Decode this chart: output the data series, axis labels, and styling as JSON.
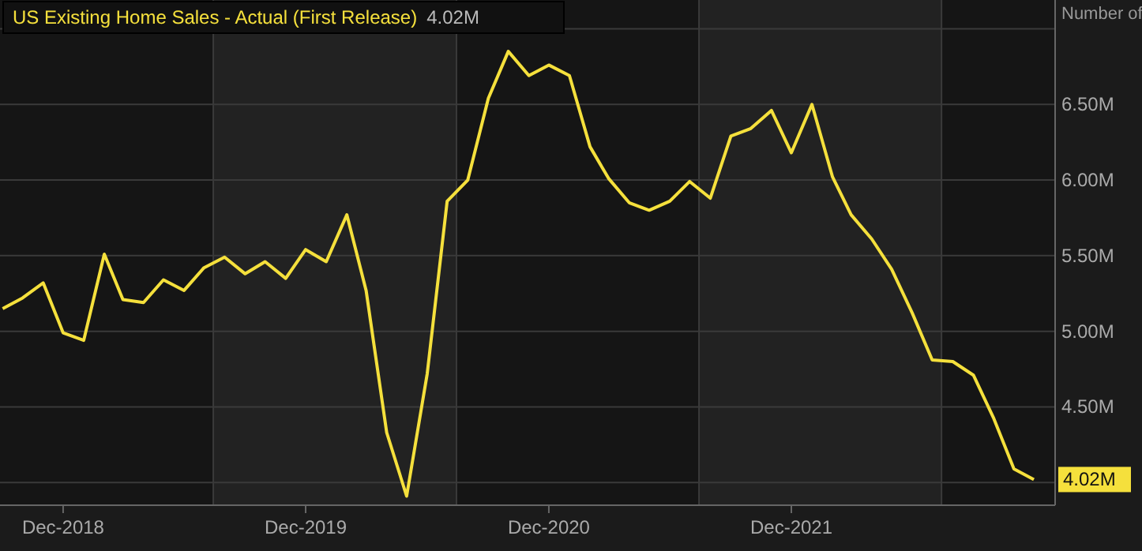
{
  "chart_data": {
    "type": "line",
    "ylabel": "Number of",
    "legend": "top left",
    "grid": true,
    "line_style": "solid",
    "x": [
      "2018-09",
      "2018-10",
      "2018-11",
      "2018-12",
      "2019-01",
      "2019-02",
      "2019-03",
      "2019-04",
      "2019-05",
      "2019-06",
      "2019-07",
      "2019-08",
      "2019-09",
      "2019-10",
      "2019-11",
      "2019-12",
      "2020-01",
      "2020-02",
      "2020-03",
      "2020-04",
      "2020-05",
      "2020-06",
      "2020-07",
      "2020-08",
      "2020-09",
      "2020-10",
      "2020-11",
      "2020-12",
      "2021-01",
      "2021-02",
      "2021-03",
      "2021-04",
      "2021-05",
      "2021-06",
      "2021-07",
      "2021-08",
      "2021-09",
      "2021-10",
      "2021-11",
      "2021-12",
      "2022-01",
      "2022-02",
      "2022-03",
      "2022-04",
      "2022-05",
      "2022-06",
      "2022-07",
      "2022-08",
      "2022-09",
      "2022-10",
      "2022-11",
      "2022-12"
    ],
    "xlim": [
      "2018-08-28",
      "2023-01-02"
    ],
    "xticks": [
      {
        "value": "2018-12-01",
        "label": "Dec-2018"
      },
      {
        "value": "2019-07-15",
        "label": null
      },
      {
        "value": "2019-12-01",
        "label": "Dec-2019"
      },
      {
        "value": "2020-07-15",
        "label": null
      },
      {
        "value": "2020-12-01",
        "label": "Dec-2020"
      },
      {
        "value": "2021-07-15",
        "label": null
      },
      {
        "value": "2021-12-01",
        "label": "Dec-2021"
      },
      {
        "value": "2022-07-15",
        "label": null
      }
    ],
    "ylim": [
      3.85,
      7.19
    ],
    "yticks": [
      {
        "value": 4,
        "label": null
      },
      {
        "value": 4.5,
        "label": "4.50M"
      },
      {
        "value": 5,
        "label": "5.00M"
      },
      {
        "value": 5.5,
        "label": "5.50M"
      },
      {
        "value": 6,
        "label": "6.00M"
      },
      {
        "value": 6.5,
        "label": "6.50M"
      },
      {
        "value": 7,
        "label": null
      }
    ],
    "series": [
      {
        "name": "US Existing Home Sales - Actual (First Release)",
        "color": "#f5e03c",
        "values": [
          5.15,
          5.22,
          5.32,
          4.99,
          4.94,
          5.51,
          5.21,
          5.19,
          5.34,
          5.27,
          5.42,
          5.49,
          5.38,
          5.46,
          5.35,
          5.54,
          5.46,
          5.77,
          5.27,
          4.33,
          3.91,
          4.72,
          5.86,
          6.0,
          6.54,
          6.85,
          6.69,
          6.76,
          6.69,
          6.22,
          6.01,
          5.85,
          5.8,
          5.86,
          5.99,
          5.88,
          6.29,
          6.34,
          6.46,
          6.18,
          6.5,
          6.02,
          5.77,
          5.61,
          5.41,
          5.12,
          4.81,
          4.8,
          4.71,
          4.43,
          4.09,
          4.02
        ],
        "value_labels": [
          null,
          null,
          null,
          null,
          null,
          null,
          null,
          null,
          null,
          null,
          null,
          null,
          null,
          null,
          null,
          null,
          null,
          null,
          null,
          null,
          null,
          null,
          null,
          null,
          null,
          null,
          null,
          null,
          null,
          null,
          null,
          null,
          null,
          null,
          null,
          null,
          null,
          null,
          null,
          null,
          null,
          null,
          null,
          null,
          null,
          null,
          null,
          null,
          null,
          null,
          null,
          "4.02M"
        ]
      }
    ]
  }
}
